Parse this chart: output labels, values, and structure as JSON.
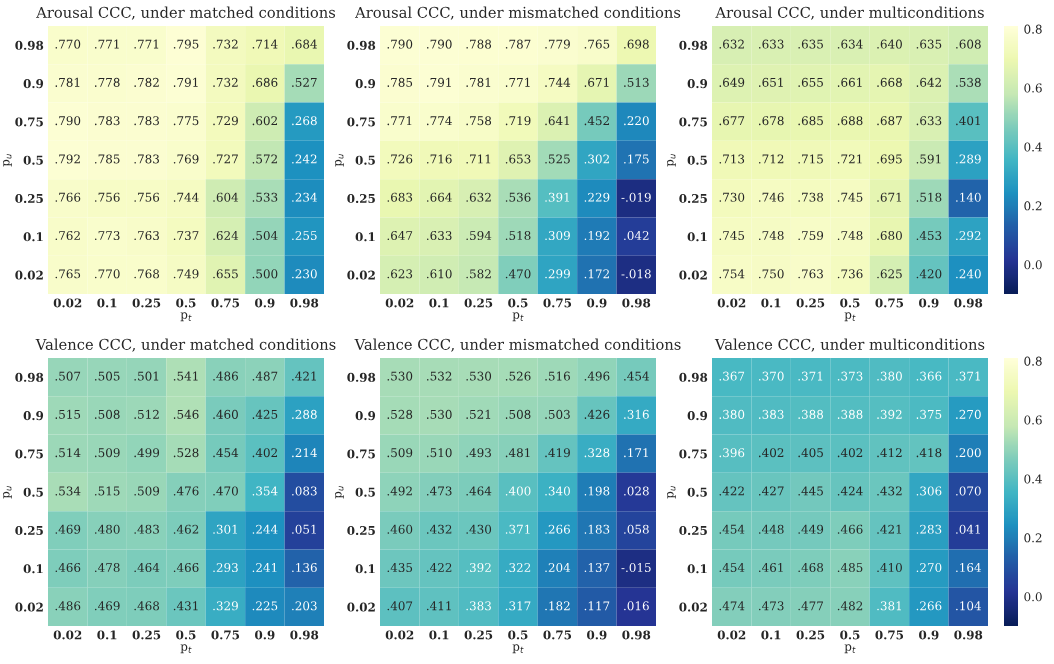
{
  "chart_data": [
    {
      "type": "heatmap",
      "title": "Arousal CCC, under matched conditions",
      "xlabel": "p$_{t}$",
      "ylabel": "p$_{u}$",
      "categories": [
        "0.02",
        "0.1",
        "0.25",
        "0.5",
        "0.75",
        "0.9",
        "0.98"
      ],
      "y_categories": [
        "0.98",
        "0.9",
        "0.75",
        "0.5",
        "0.25",
        "0.1",
        "0.02"
      ],
      "cells": [
        [
          0.77,
          0.771,
          0.771,
          0.795,
          0.732,
          0.714,
          0.684
        ],
        [
          0.781,
          0.778,
          0.782,
          0.791,
          0.732,
          0.686,
          0.527
        ],
        [
          0.79,
          0.783,
          0.783,
          0.775,
          0.729,
          0.602,
          0.268
        ],
        [
          0.792,
          0.785,
          0.783,
          0.769,
          0.727,
          0.572,
          0.242
        ],
        [
          0.766,
          0.756,
          0.756,
          0.744,
          0.604,
          0.533,
          0.234
        ],
        [
          0.762,
          0.773,
          0.763,
          0.737,
          0.624,
          0.504,
          0.255
        ],
        [
          0.765,
          0.77,
          0.768,
          0.749,
          0.655,
          0.5,
          0.23
        ]
      ],
      "cell_labels": [
        [
          ".770",
          ".771",
          ".771",
          ".795",
          ".732",
          ".714",
          ".684"
        ],
        [
          ".781",
          ".778",
          ".782",
          ".791",
          ".732",
          ".686",
          ".527"
        ],
        [
          ".790",
          ".783",
          ".783",
          ".775",
          ".729",
          ".602",
          ".268"
        ],
        [
          ".792",
          ".785",
          ".783",
          ".769",
          ".727",
          ".572",
          ".242"
        ],
        [
          ".766",
          ".756",
          ".756",
          ".744",
          ".604",
          ".533",
          ".234"
        ],
        [
          ".762",
          ".773",
          ".763",
          ".737",
          ".624",
          ".504",
          ".255"
        ],
        [
          ".765",
          ".770",
          ".768",
          ".749",
          ".655",
          ".500",
          ".230"
        ]
      ]
    },
    {
      "type": "heatmap",
      "title": "Arousal CCC, under mismatched conditions",
      "xlabel": "p$_{t}$",
      "ylabel": "p$_{u}$",
      "categories": [
        "0.02",
        "0.1",
        "0.25",
        "0.5",
        "0.75",
        "0.9",
        "0.98"
      ],
      "y_categories": [
        "0.98",
        "0.9",
        "0.75",
        "0.5",
        "0.25",
        "0.1",
        "0.02"
      ],
      "cells": [
        [
          0.79,
          0.79,
          0.788,
          0.787,
          0.779,
          0.765,
          0.698
        ],
        [
          0.785,
          0.791,
          0.781,
          0.771,
          0.744,
          0.671,
          0.513
        ],
        [
          0.771,
          0.774,
          0.758,
          0.719,
          0.641,
          0.452,
          0.22
        ],
        [
          0.726,
          0.716,
          0.711,
          0.653,
          0.525,
          0.302,
          0.175
        ],
        [
          0.683,
          0.664,
          0.632,
          0.536,
          0.391,
          0.229,
          -0.019
        ],
        [
          0.647,
          0.633,
          0.594,
          0.518,
          0.309,
          0.192,
          0.042
        ],
        [
          0.623,
          0.61,
          0.582,
          0.47,
          0.299,
          0.172,
          -0.018
        ]
      ],
      "cell_labels": [
        [
          ".790",
          ".790",
          ".788",
          ".787",
          ".779",
          ".765",
          ".698"
        ],
        [
          ".785",
          ".791",
          ".781",
          ".771",
          ".744",
          ".671",
          ".513"
        ],
        [
          ".771",
          ".774",
          ".758",
          ".719",
          ".641",
          ".452",
          ".220"
        ],
        [
          ".726",
          ".716",
          ".711",
          ".653",
          ".525",
          ".302",
          ".175"
        ],
        [
          ".683",
          ".664",
          ".632",
          ".536",
          ".391",
          ".229",
          "-.019"
        ],
        [
          ".647",
          ".633",
          ".594",
          ".518",
          ".309",
          ".192",
          ".042"
        ],
        [
          ".623",
          ".610",
          ".582",
          ".470",
          ".299",
          ".172",
          "-.018"
        ]
      ]
    },
    {
      "type": "heatmap",
      "title": "Arousal CCC, under multiconditions",
      "xlabel": "p$_{t}$",
      "ylabel": "p$_{u}$",
      "categories": [
        "0.02",
        "0.1",
        "0.25",
        "0.5",
        "0.75",
        "0.9",
        "0.98"
      ],
      "y_categories": [
        "0.98",
        "0.9",
        "0.75",
        "0.5",
        "0.25",
        "0.1",
        "0.02"
      ],
      "clim": [
        -0.1,
        0.81
      ],
      "cticks": [
        {
          "value": 0,
          "label": "0.0"
        },
        0.2,
        0.4,
        0.6,
        0.8
      ],
      "cells": [
        [
          0.632,
          0.633,
          0.635,
          0.634,
          0.64,
          0.635,
          0.608
        ],
        [
          0.649,
          0.651,
          0.655,
          0.661,
          0.668,
          0.642,
          0.538
        ],
        [
          0.677,
          0.678,
          0.685,
          0.688,
          0.687,
          0.633,
          0.401
        ],
        [
          0.713,
          0.712,
          0.715,
          0.721,
          0.695,
          0.591,
          0.289
        ],
        [
          0.73,
          0.746,
          0.738,
          0.745,
          0.671,
          0.518,
          0.14
        ],
        [
          0.745,
          0.748,
          0.759,
          0.748,
          0.68,
          0.453,
          0.292
        ],
        [
          0.754,
          0.75,
          0.763,
          0.736,
          0.625,
          0.42,
          0.24
        ]
      ],
      "cell_labels": [
        [
          ".632",
          ".633",
          ".635",
          ".634",
          ".640",
          ".635",
          ".608"
        ],
        [
          ".649",
          ".651",
          ".655",
          ".661",
          ".668",
          ".642",
          ".538"
        ],
        [
          ".677",
          ".678",
          ".685",
          ".688",
          ".687",
          ".633",
          ".401"
        ],
        [
          ".713",
          ".712",
          ".715",
          ".721",
          ".695",
          ".591",
          ".289"
        ],
        [
          ".730",
          ".746",
          ".738",
          ".745",
          ".671",
          ".518",
          ".140"
        ],
        [
          ".745",
          ".748",
          ".759",
          ".748",
          ".680",
          ".453",
          ".292"
        ],
        [
          ".754",
          ".750",
          ".763",
          ".736",
          ".625",
          ".420",
          ".240"
        ]
      ]
    },
    {
      "type": "heatmap",
      "title": "Valence CCC, under matched conditions",
      "xlabel": "p$_{t}$",
      "ylabel": "p$_{u}$",
      "categories": [
        "0.02",
        "0.1",
        "0.25",
        "0.5",
        "0.75",
        "0.9",
        "0.98"
      ],
      "y_categories": [
        "0.98",
        "0.9",
        "0.75",
        "0.5",
        "0.25",
        "0.1",
        "0.02"
      ],
      "cells": [
        [
          0.507,
          0.505,
          0.501,
          0.541,
          0.486,
          0.487,
          0.421
        ],
        [
          0.515,
          0.508,
          0.512,
          0.546,
          0.46,
          0.425,
          0.288
        ],
        [
          0.514,
          0.509,
          0.499,
          0.528,
          0.454,
          0.402,
          0.214
        ],
        [
          0.534,
          0.515,
          0.509,
          0.476,
          0.47,
          0.354,
          0.083
        ],
        [
          0.469,
          0.48,
          0.483,
          0.462,
          0.301,
          0.244,
          0.051
        ],
        [
          0.466,
          0.478,
          0.464,
          0.466,
          0.293,
          0.241,
          0.136
        ],
        [
          0.486,
          0.469,
          0.468,
          0.431,
          0.329,
          0.225,
          0.203
        ]
      ],
      "cell_labels": [
        [
          ".507",
          ".505",
          ".501",
          ".541",
          ".486",
          ".487",
          ".421"
        ],
        [
          ".515",
          ".508",
          ".512",
          ".546",
          ".460",
          ".425",
          ".288"
        ],
        [
          ".514",
          ".509",
          ".499",
          ".528",
          ".454",
          ".402",
          ".214"
        ],
        [
          ".534",
          ".515",
          ".509",
          ".476",
          ".470",
          ".354",
          ".083"
        ],
        [
          ".469",
          ".480",
          ".483",
          ".462",
          ".301",
          ".244",
          ".051"
        ],
        [
          ".466",
          ".478",
          ".464",
          ".466",
          ".293",
          ".241",
          ".136"
        ],
        [
          ".486",
          ".469",
          ".468",
          ".431",
          ".329",
          ".225",
          ".203"
        ]
      ]
    },
    {
      "type": "heatmap",
      "title": "Valence CCC, under mismatched conditions",
      "xlabel": "p$_{t}$",
      "ylabel": "p$_{u}$",
      "categories": [
        "0.02",
        "0.1",
        "0.25",
        "0.5",
        "0.75",
        "0.9",
        "0.98"
      ],
      "y_categories": [
        "0.98",
        "0.9",
        "0.75",
        "0.5",
        "0.25",
        "0.1",
        "0.02"
      ],
      "cells": [
        [
          0.53,
          0.532,
          0.53,
          0.526,
          0.516,
          0.496,
          0.454
        ],
        [
          0.528,
          0.53,
          0.521,
          0.508,
          0.503,
          0.426,
          0.316
        ],
        [
          0.509,
          0.51,
          0.493,
          0.481,
          0.419,
          0.328,
          0.171
        ],
        [
          0.492,
          0.473,
          0.464,
          0.4,
          0.34,
          0.198,
          0.028
        ],
        [
          0.46,
          0.432,
          0.43,
          0.371,
          0.266,
          0.183,
          0.058
        ],
        [
          0.435,
          0.422,
          0.392,
          0.322,
          0.204,
          0.137,
          -0.015
        ],
        [
          0.407,
          0.411,
          0.383,
          0.317,
          0.182,
          0.117,
          0.016
        ]
      ],
      "cell_labels": [
        [
          ".530",
          ".532",
          ".530",
          ".526",
          ".516",
          ".496",
          ".454"
        ],
        [
          ".528",
          ".530",
          ".521",
          ".508",
          ".503",
          ".426",
          ".316"
        ],
        [
          ".509",
          ".510",
          ".493",
          ".481",
          ".419",
          ".328",
          ".171"
        ],
        [
          ".492",
          ".473",
          ".464",
          ".400",
          ".340",
          ".198",
          ".028"
        ],
        [
          ".460",
          ".432",
          ".430",
          ".371",
          ".266",
          ".183",
          ".058"
        ],
        [
          ".435",
          ".422",
          ".392",
          ".322",
          ".204",
          ".137",
          "-.015"
        ],
        [
          ".407",
          ".411",
          ".383",
          ".317",
          ".182",
          ".117",
          ".016"
        ]
      ]
    },
    {
      "type": "heatmap",
      "title": "Valence CCC, under multiconditions",
      "xlabel": "p$_{t}$",
      "ylabel": "p$_{u}$",
      "categories": [
        "0.02",
        "0.1",
        "0.25",
        "0.5",
        "0.75",
        "0.9",
        "0.98"
      ],
      "y_categories": [
        "0.98",
        "0.9",
        "0.75",
        "0.5",
        "0.25",
        "0.1",
        "0.02"
      ],
      "clim": [
        -0.1,
        0.81
      ],
      "cticks": [
        {
          "value": 0,
          "label": "0.0"
        },
        0.2,
        0.4,
        0.6,
        0.8
      ],
      "cells": [
        [
          0.367,
          0.37,
          0.371,
          0.373,
          0.38,
          0.366,
          0.371
        ],
        [
          0.38,
          0.383,
          0.388,
          0.388,
          0.392,
          0.375,
          0.27
        ],
        [
          0.396,
          0.402,
          0.405,
          0.402,
          0.412,
          0.418,
          0.2
        ],
        [
          0.422,
          0.427,
          0.445,
          0.424,
          0.432,
          0.306,
          0.07
        ],
        [
          0.454,
          0.448,
          0.449,
          0.466,
          0.421,
          0.283,
          0.041
        ],
        [
          0.454,
          0.461,
          0.468,
          0.485,
          0.41,
          0.27,
          0.164
        ],
        [
          0.474,
          0.473,
          0.477,
          0.482,
          0.381,
          0.266,
          0.104
        ]
      ],
      "cell_labels": [
        [
          ".367",
          ".370",
          ".371",
          ".373",
          ".380",
          ".366",
          ".371"
        ],
        [
          ".380",
          ".383",
          ".388",
          ".388",
          ".392",
          ".375",
          ".270"
        ],
        [
          ".396",
          ".402",
          ".405",
          ".402",
          ".412",
          ".418",
          ".200"
        ],
        [
          ".422",
          ".427",
          ".445",
          ".424",
          ".432",
          ".306",
          ".070"
        ],
        [
          ".454",
          ".448",
          ".449",
          ".466",
          ".421",
          ".283",
          ".041"
        ],
        [
          ".454",
          ".461",
          ".468",
          ".485",
          ".410",
          ".270",
          ".164"
        ],
        [
          ".474",
          ".473",
          ".477",
          ".482",
          ".381",
          ".266",
          ".104"
        ]
      ]
    }
  ]
}
